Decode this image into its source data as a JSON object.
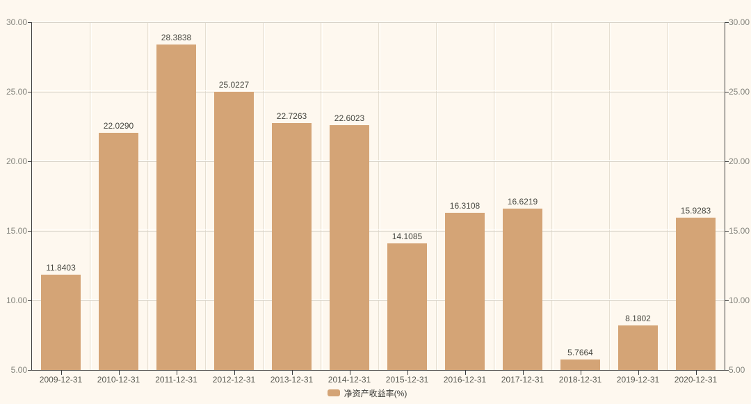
{
  "chart_data": {
    "type": "bar",
    "title": "",
    "categories": [
      "2009-12-31",
      "2010-12-31",
      "2011-12-31",
      "2012-12-31",
      "2013-12-31",
      "2014-12-31",
      "2015-12-31",
      "2016-12-31",
      "2017-12-31",
      "2018-12-31",
      "2019-12-31",
      "2020-12-31"
    ],
    "series": [
      {
        "name": "净资产收益率(%)",
        "values": [
          11.8403,
          22.029,
          28.3838,
          25.0227,
          22.7263,
          22.6023,
          14.1085,
          16.3108,
          16.6219,
          5.7664,
          8.1802,
          15.9283
        ]
      }
    ],
    "value_labels": [
      "11.8403",
      "22.0290",
      "28.3838",
      "25.0227",
      "22.7263",
      "22.6023",
      "14.1085",
      "16.3108",
      "16.6219",
      "5.7664",
      "8.1802",
      "15.9283"
    ],
    "ylim": [
      5,
      30
    ],
    "yticks": [
      {
        "value": 30,
        "label": "30.00"
      },
      {
        "value": 25,
        "label": "25.00"
      },
      {
        "value": 20,
        "label": "20.00"
      },
      {
        "value": 15,
        "label": "15.00"
      },
      {
        "value": 10,
        "label": "10.00"
      },
      {
        "value": 5,
        "label": "5.00"
      }
    ],
    "xlabel": "",
    "ylabel": "",
    "grid": true,
    "legend": {
      "position": "bottom",
      "items": [
        "净资产收益率(%)"
      ]
    },
    "colors": {
      "bar": "#d4a476",
      "background": "#fef8ef"
    }
  }
}
